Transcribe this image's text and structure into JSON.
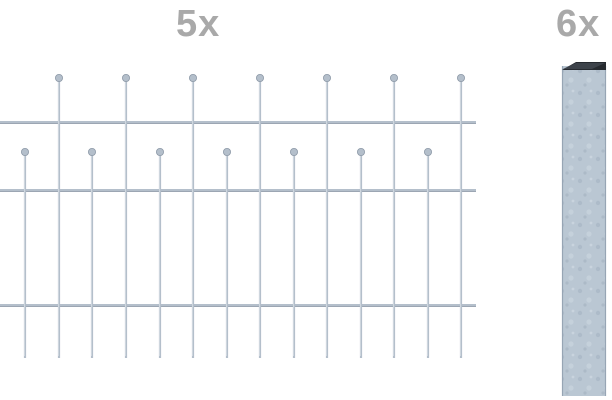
{
  "labels": {
    "fence_panel_quantity": "5x",
    "fence_post_quantity": "6x"
  },
  "colors": {
    "label_gray": "#a9a9a9",
    "wire_silver": "#b4bfcb",
    "wire_highlight": "#dfe5ec",
    "wire_shadow": "#8e9aa8",
    "post_face": "#b9c6d2",
    "post_edge": "#97a5b4",
    "post_cap": "#262a2f"
  }
}
